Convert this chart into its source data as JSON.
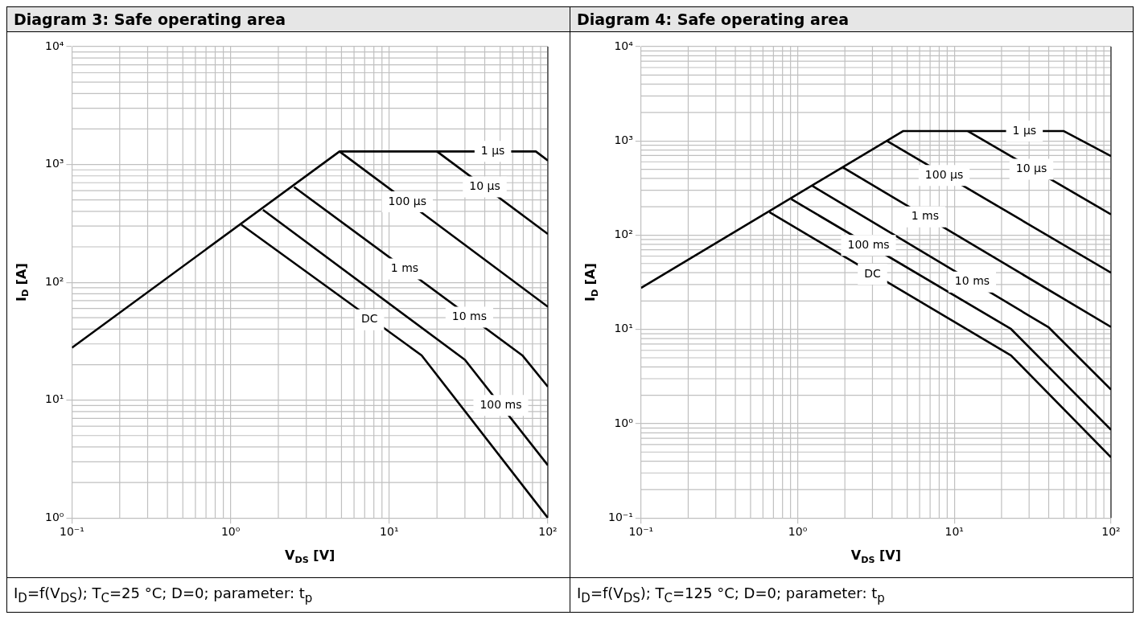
{
  "chart_data": [
    {
      "type": "line",
      "title": "Diagram 3: Safe operating area",
      "xlabel": "V$_{DS}$ [V]",
      "ylabel": "I$_{D}$ [A]",
      "log": "xy",
      "grid": true,
      "legend": false,
      "marker": "none",
      "xlim": [
        0.1,
        100
      ],
      "ylim": [
        1,
        10000
      ],
      "xticks": [
        {
          "value": 0.1,
          "label": "10⁻¹"
        },
        {
          "value": 1,
          "label": "10⁰"
        },
        {
          "value": 10,
          "label": "10¹"
        },
        {
          "value": 100,
          "label": "10²"
        }
      ],
      "yticks": [
        {
          "value": 1,
          "label": "10⁰"
        },
        {
          "value": 10,
          "label": "10¹"
        },
        {
          "value": 100,
          "label": "10²"
        },
        {
          "value": 1000,
          "label": "10³"
        },
        {
          "value": 10000,
          "label": "10⁴"
        }
      ],
      "series": [
        {
          "color": "#000000",
          "x": [
            0.1,
            4.86,
            84,
            100
          ],
          "values": [
            27.8,
            1290,
            1290,
            1080
          ]
        },
        {
          "color": "#000000",
          "x": [
            20,
            100
          ],
          "values": [
            1290,
            257
          ]
        },
        {
          "color": "#000000",
          "x": [
            4.86,
            100
          ],
          "values": [
            1290,
            62
          ]
        },
        {
          "color": "#000000",
          "x": [
            2.51,
            69,
            100
          ],
          "values": [
            645,
            24,
            13
          ]
        },
        {
          "color": "#000000",
          "x": [
            1.6,
            30,
            100
          ],
          "values": [
            412,
            22,
            2.8
          ]
        },
        {
          "color": "#000000",
          "x": [
            1.17,
            16,
            100
          ],
          "values": [
            308,
            24,
            1.0
          ]
        }
      ],
      "annotations": [
        {
          "text": "1 µs",
          "x": 45,
          "y": 1290
        },
        {
          "text": "10 µs",
          "x": 40,
          "y": 645
        },
        {
          "text": "100 µs",
          "x": 13,
          "y": 482
        },
        {
          "text": "1 ms",
          "x": 12.5,
          "y": 130
        },
        {
          "text": "DC",
          "x": 7.5,
          "y": 48
        },
        {
          "text": "10 ms",
          "x": 32,
          "y": 50.6
        },
        {
          "text": "100 ms",
          "x": 50.5,
          "y": 9.0
        },
        "I$_{D}$=f(V$_{DS}$); T$_{C}$=25 °C; D=0; parameter: t$_{p}$"
      ]
    },
    {
      "type": "line",
      "title": "Diagram 4: Safe operating area",
      "xlabel": "V$_{DS}$ [V]",
      "ylabel": "I$_{D}$ [A]",
      "log": "xy",
      "grid": true,
      "legend": false,
      "marker": "none",
      "xlim": [
        0.1,
        100
      ],
      "ylim": [
        0.1,
        10000
      ],
      "xticks": [
        {
          "value": 0.1,
          "label": "10⁻¹"
        },
        {
          "value": 1,
          "label": "10⁰"
        },
        {
          "value": 10,
          "label": "10¹"
        },
        {
          "value": 100,
          "label": "10²"
        }
      ],
      "yticks": [
        {
          "value": 0.1,
          "label": "10⁻¹"
        },
        {
          "value": 1,
          "label": "10⁰"
        },
        {
          "value": 10,
          "label": "10¹"
        },
        {
          "value": 100,
          "label": "10²"
        },
        {
          "value": 1000,
          "label": "10³"
        },
        {
          "value": 10000,
          "label": "10⁴"
        }
      ],
      "series": [
        {
          "color": "#000000",
          "x": [
            0.1,
            4.7,
            50,
            100
          ],
          "values": [
            27.6,
            1270,
            1270,
            690
          ]
        },
        {
          "color": "#000000",
          "x": [
            12.2,
            100
          ],
          "values": [
            1270,
            166
          ]
        },
        {
          "color": "#000000",
          "x": [
            3.7,
            100
          ],
          "values": [
            1000,
            40
          ]
        },
        {
          "color": "#000000",
          "x": [
            1.94,
            100
          ],
          "values": [
            524,
            10.6
          ]
        },
        {
          "color": "#000000",
          "x": [
            1.24,
            40,
            100
          ],
          "values": [
            333,
            10.5,
            2.3
          ]
        },
        {
          "color": "#000000",
          "x": [
            0.91,
            23,
            100
          ],
          "values": [
            241,
            10.1,
            0.86
          ]
        },
        {
          "color": "#000000",
          "x": [
            0.66,
            23,
            100
          ],
          "values": [
            175,
            5.3,
            0.44
          ]
        }
      ],
      "annotations": [
        {
          "text": "1 µs",
          "x": 28,
          "y": 1270
        },
        {
          "text": "10 µs",
          "x": 31,
          "y": 500
        },
        {
          "text": "100 µs",
          "x": 8.6,
          "y": 430
        },
        {
          "text": "1 ms",
          "x": 6.5,
          "y": 156
        },
        {
          "text": "100 ms",
          "x": 2.83,
          "y": 77.7
        },
        {
          "text": "10 ms",
          "x": 13,
          "y": 31.8
        },
        {
          "text": "DC",
          "x": 3,
          "y": 38.5
        },
        "I$_{D}$=f(V$_{DS}$); T$_{C}$=125 °C; D=0; parameter: t$_{p}$"
      ]
    }
  ]
}
